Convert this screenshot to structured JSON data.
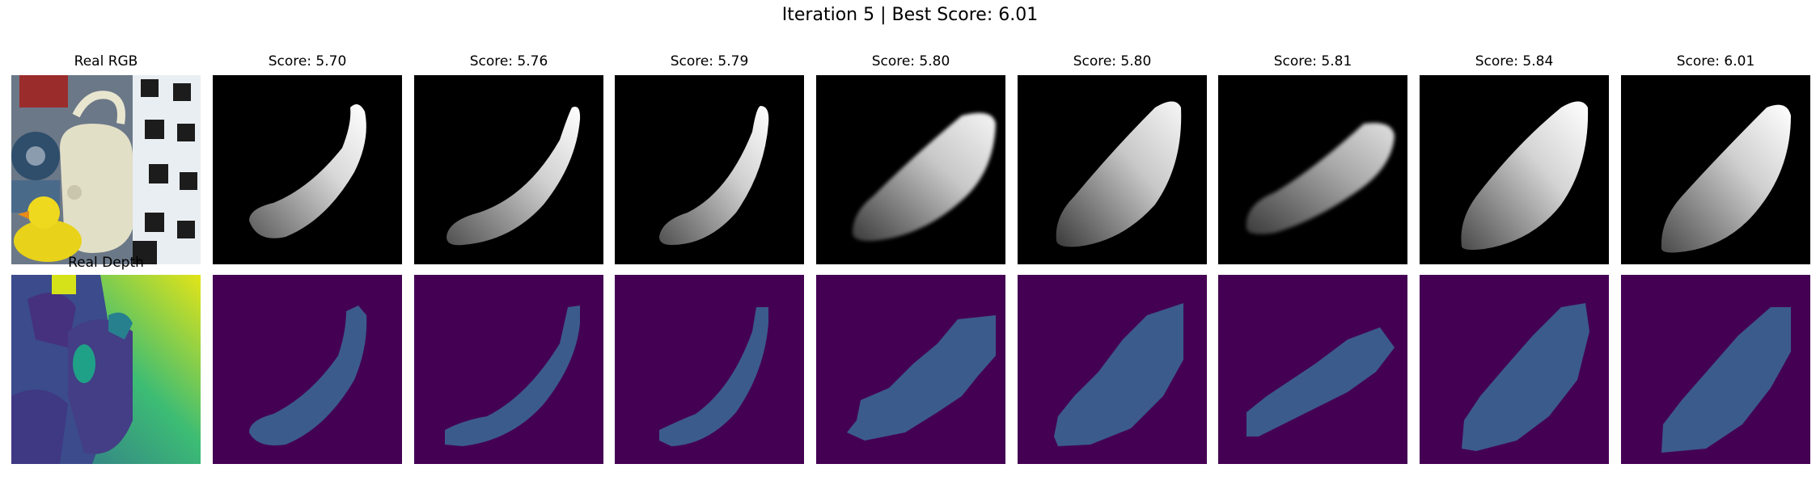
{
  "figure": {
    "suptitle": "Iteration 5 | Best Score: 6.01",
    "real_rgb_title": "Real RGB",
    "real_depth_title": "Real Depth"
  },
  "renders": [
    {
      "score_label": "Score: 5.70"
    },
    {
      "score_label": "Score: 5.76"
    },
    {
      "score_label": "Score: 5.79"
    },
    {
      "score_label": "Score: 5.80"
    },
    {
      "score_label": "Score: 5.80"
    },
    {
      "score_label": "Score: 5.81"
    },
    {
      "score_label": "Score: 5.84"
    },
    {
      "score_label": "Score: 6.01"
    }
  ],
  "colors": {
    "depth_background": "#440154",
    "depth_object": "#3b5b8c",
    "rgb_background": "#000000"
  }
}
